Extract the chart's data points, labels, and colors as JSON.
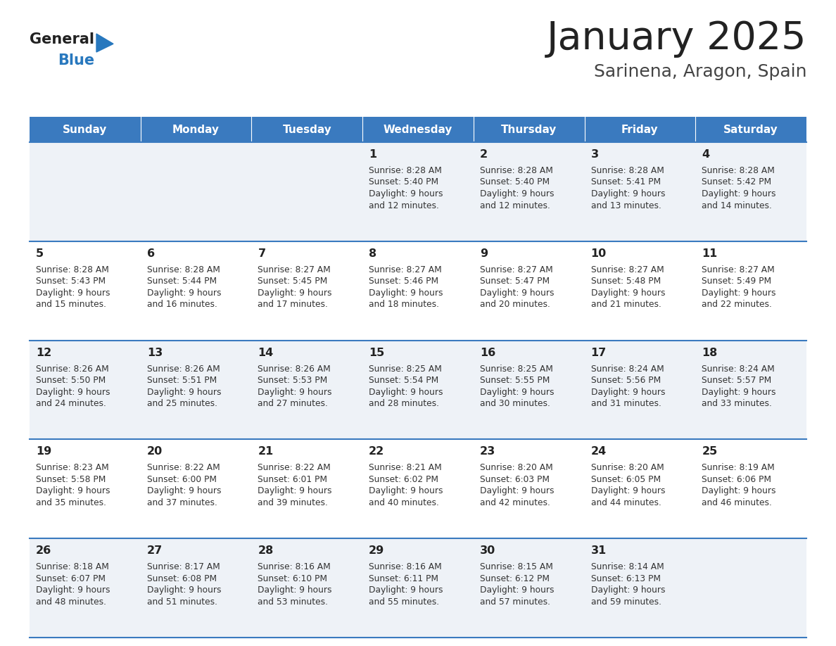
{
  "title": "January 2025",
  "subtitle": "Sarinena, Aragon, Spain",
  "header_color": "#3a7abf",
  "header_text_color": "#ffffff",
  "cell_bg_even": "#eef2f7",
  "cell_bg_odd": "#ffffff",
  "border_color": "#3a7abf",
  "day_headers": [
    "Sunday",
    "Monday",
    "Tuesday",
    "Wednesday",
    "Thursday",
    "Friday",
    "Saturday"
  ],
  "title_color": "#222222",
  "subtitle_color": "#444444",
  "day_num_color": "#222222",
  "info_color": "#333333",
  "logo_general_color": "#222222",
  "logo_blue_color": "#2878be",
  "calendar_data": [
    [
      null,
      null,
      null,
      {
        "day": 1,
        "sunrise": "8:28 AM",
        "sunset": "5:40 PM",
        "daylight_h": "9 hours",
        "daylight_m": "12 minutes"
      },
      {
        "day": 2,
        "sunrise": "8:28 AM",
        "sunset": "5:40 PM",
        "daylight_h": "9 hours",
        "daylight_m": "12 minutes"
      },
      {
        "day": 3,
        "sunrise": "8:28 AM",
        "sunset": "5:41 PM",
        "daylight_h": "9 hours",
        "daylight_m": "13 minutes"
      },
      {
        "day": 4,
        "sunrise": "8:28 AM",
        "sunset": "5:42 PM",
        "daylight_h": "9 hours",
        "daylight_m": "14 minutes"
      }
    ],
    [
      {
        "day": 5,
        "sunrise": "8:28 AM",
        "sunset": "5:43 PM",
        "daylight_h": "9 hours",
        "daylight_m": "15 minutes"
      },
      {
        "day": 6,
        "sunrise": "8:28 AM",
        "sunset": "5:44 PM",
        "daylight_h": "9 hours",
        "daylight_m": "16 minutes"
      },
      {
        "day": 7,
        "sunrise": "8:27 AM",
        "sunset": "5:45 PM",
        "daylight_h": "9 hours",
        "daylight_m": "17 minutes"
      },
      {
        "day": 8,
        "sunrise": "8:27 AM",
        "sunset": "5:46 PM",
        "daylight_h": "9 hours",
        "daylight_m": "18 minutes"
      },
      {
        "day": 9,
        "sunrise": "8:27 AM",
        "sunset": "5:47 PM",
        "daylight_h": "9 hours",
        "daylight_m": "20 minutes"
      },
      {
        "day": 10,
        "sunrise": "8:27 AM",
        "sunset": "5:48 PM",
        "daylight_h": "9 hours",
        "daylight_m": "21 minutes"
      },
      {
        "day": 11,
        "sunrise": "8:27 AM",
        "sunset": "5:49 PM",
        "daylight_h": "9 hours",
        "daylight_m": "22 minutes"
      }
    ],
    [
      {
        "day": 12,
        "sunrise": "8:26 AM",
        "sunset": "5:50 PM",
        "daylight_h": "9 hours",
        "daylight_m": "24 minutes"
      },
      {
        "day": 13,
        "sunrise": "8:26 AM",
        "sunset": "5:51 PM",
        "daylight_h": "9 hours",
        "daylight_m": "25 minutes"
      },
      {
        "day": 14,
        "sunrise": "8:26 AM",
        "sunset": "5:53 PM",
        "daylight_h": "9 hours",
        "daylight_m": "27 minutes"
      },
      {
        "day": 15,
        "sunrise": "8:25 AM",
        "sunset": "5:54 PM",
        "daylight_h": "9 hours",
        "daylight_m": "28 minutes"
      },
      {
        "day": 16,
        "sunrise": "8:25 AM",
        "sunset": "5:55 PM",
        "daylight_h": "9 hours",
        "daylight_m": "30 minutes"
      },
      {
        "day": 17,
        "sunrise": "8:24 AM",
        "sunset": "5:56 PM",
        "daylight_h": "9 hours",
        "daylight_m": "31 minutes"
      },
      {
        "day": 18,
        "sunrise": "8:24 AM",
        "sunset": "5:57 PM",
        "daylight_h": "9 hours",
        "daylight_m": "33 minutes"
      }
    ],
    [
      {
        "day": 19,
        "sunrise": "8:23 AM",
        "sunset": "5:58 PM",
        "daylight_h": "9 hours",
        "daylight_m": "35 minutes"
      },
      {
        "day": 20,
        "sunrise": "8:22 AM",
        "sunset": "6:00 PM",
        "daylight_h": "9 hours",
        "daylight_m": "37 minutes"
      },
      {
        "day": 21,
        "sunrise": "8:22 AM",
        "sunset": "6:01 PM",
        "daylight_h": "9 hours",
        "daylight_m": "39 minutes"
      },
      {
        "day": 22,
        "sunrise": "8:21 AM",
        "sunset": "6:02 PM",
        "daylight_h": "9 hours",
        "daylight_m": "40 minutes"
      },
      {
        "day": 23,
        "sunrise": "8:20 AM",
        "sunset": "6:03 PM",
        "daylight_h": "9 hours",
        "daylight_m": "42 minutes"
      },
      {
        "day": 24,
        "sunrise": "8:20 AM",
        "sunset": "6:05 PM",
        "daylight_h": "9 hours",
        "daylight_m": "44 minutes"
      },
      {
        "day": 25,
        "sunrise": "8:19 AM",
        "sunset": "6:06 PM",
        "daylight_h": "9 hours",
        "daylight_m": "46 minutes"
      }
    ],
    [
      {
        "day": 26,
        "sunrise": "8:18 AM",
        "sunset": "6:07 PM",
        "daylight_h": "9 hours",
        "daylight_m": "48 minutes"
      },
      {
        "day": 27,
        "sunrise": "8:17 AM",
        "sunset": "6:08 PM",
        "daylight_h": "9 hours",
        "daylight_m": "51 minutes"
      },
      {
        "day": 28,
        "sunrise": "8:16 AM",
        "sunset": "6:10 PM",
        "daylight_h": "9 hours",
        "daylight_m": "53 minutes"
      },
      {
        "day": 29,
        "sunrise": "8:16 AM",
        "sunset": "6:11 PM",
        "daylight_h": "9 hours",
        "daylight_m": "55 minutes"
      },
      {
        "day": 30,
        "sunrise": "8:15 AM",
        "sunset": "6:12 PM",
        "daylight_h": "9 hours",
        "daylight_m": "57 minutes"
      },
      {
        "day": 31,
        "sunrise": "8:14 AM",
        "sunset": "6:13 PM",
        "daylight_h": "9 hours",
        "daylight_m": "59 minutes"
      },
      null
    ]
  ]
}
